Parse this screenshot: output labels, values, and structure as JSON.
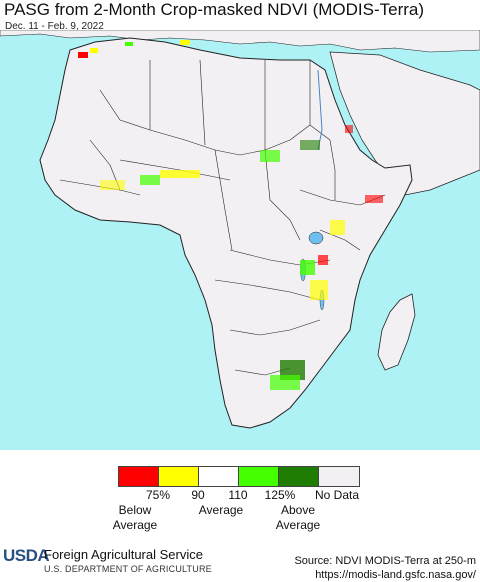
{
  "header": {
    "title": "PASG from 2-Month Crop-masked NDVI (MODIS-Terra)",
    "date_range": "Dec. 11 - Feb. 9, 2022"
  },
  "map": {
    "region": "Africa",
    "colors": {
      "ocean": "#aef2f6",
      "land": "#f2f0f2",
      "border": "#222222",
      "lake": "#6fc0ee"
    }
  },
  "legend": {
    "swatches": [
      {
        "color": "#ff0000"
      },
      {
        "color": "#ffff00"
      },
      {
        "color": "#ffffff"
      },
      {
        "color": "#44ff00"
      },
      {
        "color": "#1e7d00"
      },
      {
        "color": "#f2f0f2"
      }
    ],
    "ticks": [
      "75%",
      "90",
      "110",
      "125%",
      "No Data"
    ],
    "categories": [
      {
        "line1": "Below",
        "line2": "Average"
      },
      {
        "line1": "Average",
        "line2": ""
      },
      {
        "line1": "Above",
        "line2": "Average"
      }
    ]
  },
  "footer": {
    "logo_text": "USDA",
    "agency": "Foreign Agricultural Service",
    "department": "U.S. DEPARTMENT OF AGRICULTURE",
    "source_line1": "Source: NDVI MODIS-Terra at 250-m",
    "source_line2": "https://modis-land.gsfc.nasa.gov/"
  }
}
